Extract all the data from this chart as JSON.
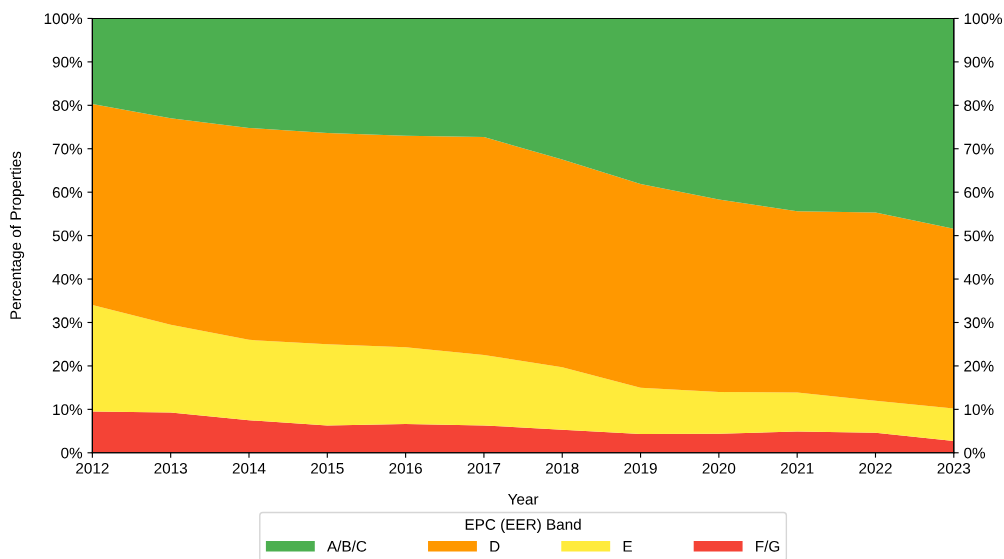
{
  "chart_data": {
    "type": "area",
    "stacked": true,
    "xlabel": "Year",
    "ylabel": "Percentage of Properties",
    "legend_title": "EPC (EER) Band",
    "legend": "bottom",
    "grid": false,
    "x": [
      2012,
      2013,
      2014,
      2015,
      2016,
      2017,
      2018,
      2019,
      2020,
      2021,
      2022,
      2023
    ],
    "xlim": [
      2012,
      2023
    ],
    "xticks": [
      2012,
      2013,
      2014,
      2015,
      2016,
      2017,
      2018,
      2019,
      2020,
      2021,
      2022,
      2023
    ],
    "ylim": [
      0,
      100
    ],
    "yticks": [
      {
        "value": 0,
        "label": "0%"
      },
      {
        "value": 10,
        "label": "10%"
      },
      {
        "value": 20,
        "label": "20%"
      },
      {
        "value": 30,
        "label": "30%"
      },
      {
        "value": 40,
        "label": "40%"
      },
      {
        "value": 50,
        "label": "50%"
      },
      {
        "value": 60,
        "label": "60%"
      },
      {
        "value": 70,
        "label": "70%"
      },
      {
        "value": 80,
        "label": "80%"
      },
      {
        "value": 90,
        "label": "90%"
      },
      {
        "value": 100,
        "label": "100%"
      }
    ],
    "y2lim": [
      0,
      100
    ],
    "y2ticks": [
      {
        "value": 0,
        "label": "0%"
      },
      {
        "value": 10,
        "label": "10%"
      },
      {
        "value": 20,
        "label": "20%"
      },
      {
        "value": 30,
        "label": "30%"
      },
      {
        "value": 40,
        "label": "40%"
      },
      {
        "value": 50,
        "label": "50%"
      },
      {
        "value": 60,
        "label": "60%"
      },
      {
        "value": 70,
        "label": "70%"
      },
      {
        "value": 80,
        "label": "80%"
      },
      {
        "value": 90,
        "label": "90%"
      },
      {
        "value": 100,
        "label": "100%"
      }
    ],
    "series": [
      {
        "name": "F/G",
        "color": "#f44336",
        "values": [
          9.5,
          9.3,
          7.5,
          6.3,
          6.6,
          6.3,
          5.3,
          4.3,
          4.4,
          4.9,
          4.6,
          2.7
        ]
      },
      {
        "name": "E",
        "color": "#ffeb3b",
        "values": [
          24.5,
          20.2,
          18.5,
          18.7,
          17.7,
          16.2,
          14.4,
          10.7,
          9.6,
          9.0,
          7.4,
          7.5
        ]
      },
      {
        "name": "D",
        "color": "#ff9800",
        "values": [
          46.3,
          47.5,
          48.8,
          48.6,
          48.7,
          50.2,
          47.8,
          46.9,
          44.3,
          41.7,
          43.3,
          41.4
        ]
      },
      {
        "name": "A/B/C",
        "color": "#4caf50",
        "values": [
          19.7,
          23.0,
          25.2,
          26.4,
          27.0,
          27.3,
          32.5,
          38.1,
          41.7,
          44.4,
          44.7,
          48.4
        ]
      }
    ]
  }
}
